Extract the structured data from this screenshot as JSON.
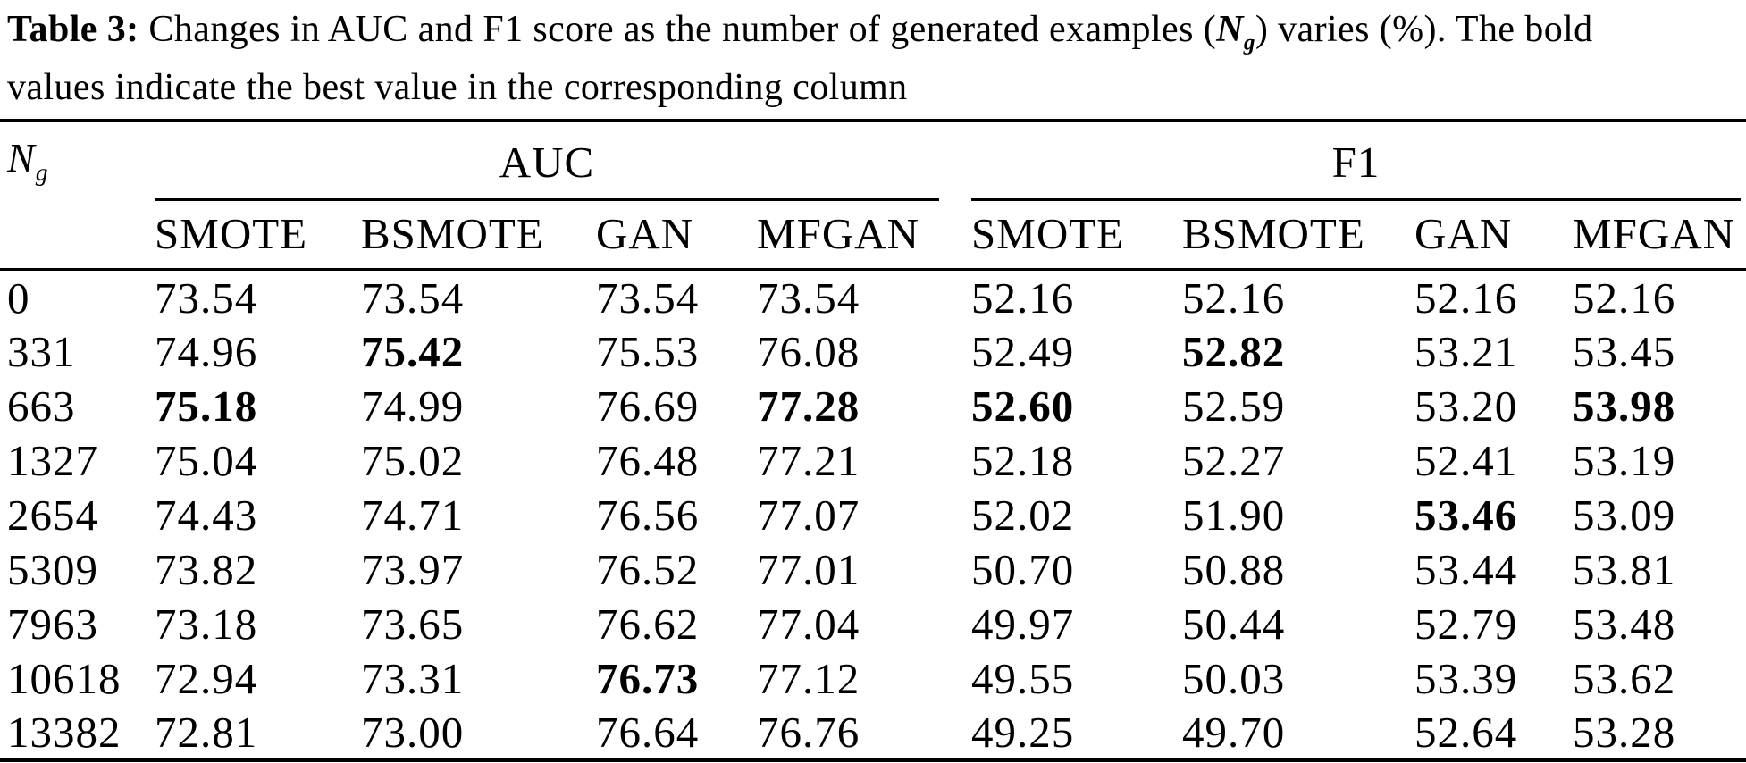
{
  "page": {
    "background": "#ffffff",
    "text_color": "#000000"
  },
  "caption": {
    "label": "Table 3:",
    "line1_before_n": " Changes in AUC and F1 score as the number of generated examples (",
    "n_symbol": "N",
    "n_subscript": "g",
    "line1_after_n": ") varies (%). The bold",
    "line2": "values indicate the best value in the corresponding column"
  },
  "table": {
    "row_header_symbol": "N",
    "row_header_subscript": "g",
    "groups": [
      {
        "label": "AUC",
        "methods": [
          "SMOTE",
          "BSMOTE",
          "GAN",
          "MFGAN"
        ]
      },
      {
        "label": "F1",
        "methods": [
          "SMOTE",
          "BSMOTE",
          "GAN",
          "MFGAN"
        ]
      }
    ],
    "method_headers": [
      "SMOTE",
      "BSMOTE",
      "GAN",
      "MFGAN",
      "SMOTE",
      "BSMOTE",
      "GAN",
      "MFGAN"
    ],
    "rows": [
      {
        "ng": "0",
        "values": [
          "73.54",
          "73.54",
          "73.54",
          "73.54",
          "52.16",
          "52.16",
          "52.16",
          "52.16"
        ],
        "bold": []
      },
      {
        "ng": "331",
        "values": [
          "74.96",
          "75.42",
          "75.53",
          "76.08",
          "52.49",
          "52.82",
          "53.21",
          "53.45"
        ],
        "bold": [
          1,
          5
        ]
      },
      {
        "ng": "663",
        "values": [
          "75.18",
          "74.99",
          "76.69",
          "77.28",
          "52.60",
          "52.59",
          "53.20",
          "53.98"
        ],
        "bold": [
          0,
          3,
          4,
          7
        ]
      },
      {
        "ng": "1327",
        "values": [
          "75.04",
          "75.02",
          "76.48",
          "77.21",
          "52.18",
          "52.27",
          "52.41",
          "53.19"
        ],
        "bold": []
      },
      {
        "ng": "2654",
        "values": [
          "74.43",
          "74.71",
          "76.56",
          "77.07",
          "52.02",
          "51.90",
          "53.46",
          "53.09"
        ],
        "bold": [
          6
        ]
      },
      {
        "ng": "5309",
        "values": [
          "73.82",
          "73.97",
          "76.52",
          "77.01",
          "50.70",
          "50.88",
          "53.44",
          "53.81"
        ],
        "bold": []
      },
      {
        "ng": "7963",
        "values": [
          "73.18",
          "73.65",
          "76.62",
          "77.04",
          "49.97",
          "50.44",
          "52.79",
          "53.48"
        ],
        "bold": []
      },
      {
        "ng": "10618",
        "values": [
          "72.94",
          "73.31",
          "76.73",
          "77.12",
          "49.55",
          "50.03",
          "53.39",
          "53.62"
        ],
        "bold": [
          2
        ]
      },
      {
        "ng": "13382",
        "values": [
          "72.81",
          "73.00",
          "76.64",
          "76.76",
          "49.25",
          "49.70",
          "52.64",
          "53.28"
        ],
        "bold": []
      }
    ]
  }
}
